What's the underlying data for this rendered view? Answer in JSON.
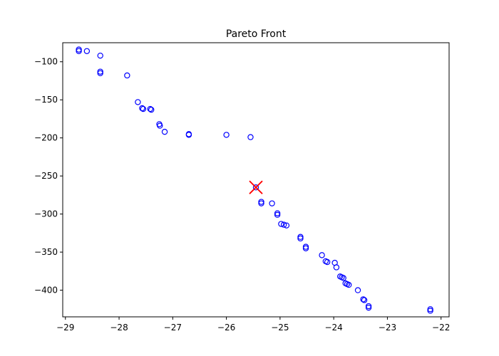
{
  "chart_data": {
    "type": "scatter",
    "title": "Pareto Front",
    "xlabel": "",
    "ylabel": "",
    "xlim": [
      -29.05,
      -21.85
    ],
    "ylim": [
      -435,
      -75
    ],
    "xticks": [
      -29,
      -28,
      -27,
      -26,
      -25,
      -24,
      -23,
      -22
    ],
    "yticks": [
      -100,
      -150,
      -200,
      -250,
      -300,
      -350,
      -400
    ],
    "xtick_labels": [
      "−29",
      "−28",
      "−27",
      "−26",
      "−25",
      "−24",
      "−23",
      "−22"
    ],
    "ytick_labels": [
      "−100",
      "−150",
      "−200",
      "−250",
      "−300",
      "−350",
      "−400"
    ],
    "grid": false,
    "marker_color": "#0000ff",
    "highlight_color": "#ff0000",
    "series": [
      {
        "marker": "open-circle",
        "points": [
          [
            -28.75,
            -84
          ],
          [
            -28.75,
            -86
          ],
          [
            -28.6,
            -86
          ],
          [
            -28.35,
            -92
          ],
          [
            -28.35,
            -113
          ],
          [
            -28.35,
            -115
          ],
          [
            -27.85,
            -118
          ],
          [
            -27.65,
            -153
          ],
          [
            -27.57,
            -161
          ],
          [
            -27.55,
            -162
          ],
          [
            -27.42,
            -162
          ],
          [
            -27.4,
            -163
          ],
          [
            -27.25,
            -182
          ],
          [
            -27.24,
            -184
          ],
          [
            -27.15,
            -192
          ],
          [
            -26.7,
            -195
          ],
          [
            -26.7,
            -196
          ],
          [
            -26.0,
            -196
          ],
          [
            -25.55,
            -199
          ],
          [
            -25.45,
            -265
          ],
          [
            -25.35,
            -284
          ],
          [
            -25.35,
            -286
          ],
          [
            -25.15,
            -286
          ],
          [
            -25.05,
            -299
          ],
          [
            -25.05,
            -301
          ],
          [
            -24.98,
            -313
          ],
          [
            -24.93,
            -314
          ],
          [
            -24.88,
            -315
          ],
          [
            -24.62,
            -330
          ],
          [
            -24.62,
            -332
          ],
          [
            -24.52,
            -343
          ],
          [
            -24.52,
            -345
          ],
          [
            -24.22,
            -354
          ],
          [
            -24.15,
            -362
          ],
          [
            -24.12,
            -363
          ],
          [
            -23.98,
            -364
          ],
          [
            -23.95,
            -370
          ],
          [
            -23.88,
            -382
          ],
          [
            -23.85,
            -383
          ],
          [
            -23.82,
            -384
          ],
          [
            -23.78,
            -391
          ],
          [
            -23.75,
            -392
          ],
          [
            -23.72,
            -393
          ],
          [
            -23.55,
            -400
          ],
          [
            -23.45,
            -412
          ],
          [
            -23.43,
            -413
          ],
          [
            -23.35,
            -421
          ],
          [
            -23.35,
            -423
          ],
          [
            -22.2,
            -425
          ],
          [
            -22.2,
            -427
          ]
        ]
      },
      {
        "marker": "x-cross",
        "points": [
          [
            -25.45,
            -265
          ]
        ]
      }
    ]
  }
}
